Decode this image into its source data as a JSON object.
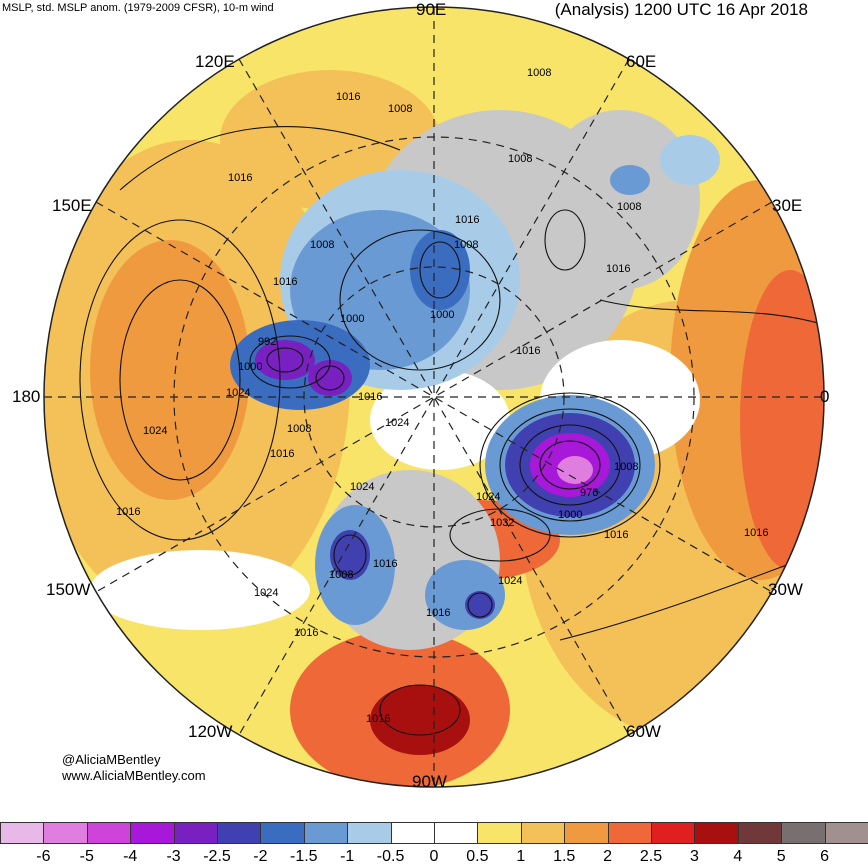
{
  "header": {
    "left_title": "MSLP, std. MSLP anom. (1979-2009 CFSR), 10-m wind",
    "right_title": "(Analysis) 1200 UTC 16 Apr 2018"
  },
  "longitude_labels": {
    "e90": "90E",
    "e60": "60E",
    "e120": "120E",
    "e150": "150E",
    "e30": "30E",
    "w180": "180",
    "zero": "0",
    "w150": "150W",
    "w30": "30W",
    "w120": "120W",
    "w60": "60W",
    "w90": "90W"
  },
  "isobar_labels": [
    {
      "text": "1008",
      "id": "a"
    },
    {
      "text": "1008",
      "id": "b"
    },
    {
      "text": "1016",
      "id": "c"
    },
    {
      "text": "1008",
      "id": "d"
    },
    {
      "text": "1016",
      "id": "e"
    },
    {
      "text": "1016",
      "id": "f"
    },
    {
      "text": "1008",
      "id": "g"
    },
    {
      "text": "1008",
      "id": "h"
    },
    {
      "text": "1016",
      "id": "i"
    },
    {
      "text": "1008",
      "id": "j"
    },
    {
      "text": "1016",
      "id": "k"
    },
    {
      "text": "1000",
      "id": "l"
    },
    {
      "text": "1000",
      "id": "m"
    },
    {
      "text": "992",
      "id": "n"
    },
    {
      "text": "1000",
      "id": "o"
    },
    {
      "text": "1024",
      "id": "p"
    },
    {
      "text": "1016",
      "id": "q"
    },
    {
      "text": "1016",
      "id": "r"
    },
    {
      "text": "1024",
      "id": "s"
    },
    {
      "text": "1008",
      "id": "t"
    },
    {
      "text": "1016",
      "id": "u"
    },
    {
      "text": "1024",
      "id": "v"
    },
    {
      "text": "1008",
      "id": "w"
    },
    {
      "text": "976",
      "id": "x"
    },
    {
      "text": "1000",
      "id": "y"
    },
    {
      "text": "1016",
      "id": "z"
    },
    {
      "text": "1024",
      "id": "aa"
    },
    {
      "text": "1032",
      "id": "ab"
    },
    {
      "text": "1024",
      "id": "ac"
    },
    {
      "text": "1016",
      "id": "ad"
    },
    {
      "text": "1016",
      "id": "ae"
    },
    {
      "text": "1024",
      "id": "af"
    },
    {
      "text": "1016",
      "id": "ag"
    },
    {
      "text": "1008",
      "id": "ah"
    },
    {
      "text": "1024",
      "id": "ai"
    },
    {
      "text": "1016",
      "id": "aj"
    },
    {
      "text": "1016",
      "id": "ak"
    },
    {
      "text": "1016",
      "id": "al"
    }
  ],
  "credits": {
    "handle": "@AliciaMBentley",
    "site": "www.AliciaMBentley.com"
  },
  "colorbar": {
    "labels": [
      "-6",
      "-5",
      "-4",
      "-3",
      "-2.5",
      "-2",
      "-1.5",
      "-1",
      "-0.5",
      "0",
      "0.5",
      "1",
      "1.5",
      "2",
      "2.5",
      "3",
      "4",
      "5",
      "6"
    ],
    "colors": [
      "#e8b8e8",
      "#e07ee0",
      "#cc44d8",
      "#a818d8",
      "#7820c0",
      "#4040b0",
      "#3a6cc0",
      "#6a9ad4",
      "#a8cce8",
      "#ffffff",
      "#ffffff",
      "#f8e468",
      "#f4c058",
      "#f09a40",
      "#ee6838",
      "#e02020",
      "#a81010",
      "#703838",
      "#787070",
      "#a09090"
    ]
  },
  "colors": {
    "neg_strong": "#7820c0",
    "neg_mid": "#3a6cc0",
    "neg_light": "#a8cce8",
    "pos_light": "#f8e468",
    "pos_mid": "#f09a40",
    "pos_strong": "#e02020",
    "land_gray": "#c8c8c8"
  }
}
